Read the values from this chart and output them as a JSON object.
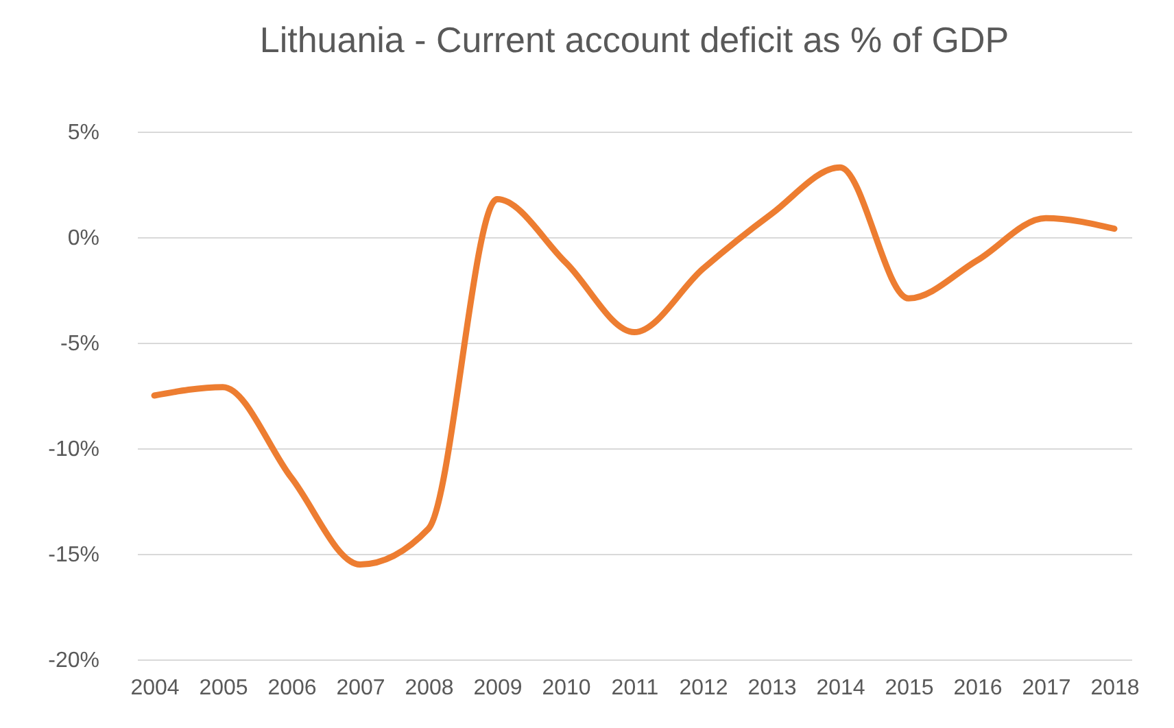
{
  "chart_data": {
    "type": "line",
    "title": "Lithuania - Current account deficit as % of GDP",
    "categories": [
      "2004",
      "2005",
      "2006",
      "2007",
      "2008",
      "2009",
      "2010",
      "2011",
      "2012",
      "2013",
      "2014",
      "2015",
      "2016",
      "2017",
      "2018"
    ],
    "series": [
      {
        "color": "#ed7d31",
        "values": [
          -7.5,
          -7.1,
          -11.4,
          -15.5,
          -13.8,
          1.8,
          -1.2,
          -4.5,
          -1.5,
          1.1,
          3.3,
          -2.9,
          -1.1,
          0.9,
          0.4
        ]
      }
    ],
    "ylim": [
      -20,
      5
    ],
    "yticks": [
      {
        "value": -20,
        "label": "-20%"
      },
      {
        "value": -15,
        "label": "-15%"
      },
      {
        "value": -10,
        "label": "-10%"
      },
      {
        "value": -5,
        "label": "-5%"
      },
      {
        "value": 0,
        "label": "0%"
      },
      {
        "value": 5,
        "label": "5%"
      }
    ],
    "grid": "y",
    "legend": false,
    "marker": "none",
    "line_style": "solid"
  }
}
